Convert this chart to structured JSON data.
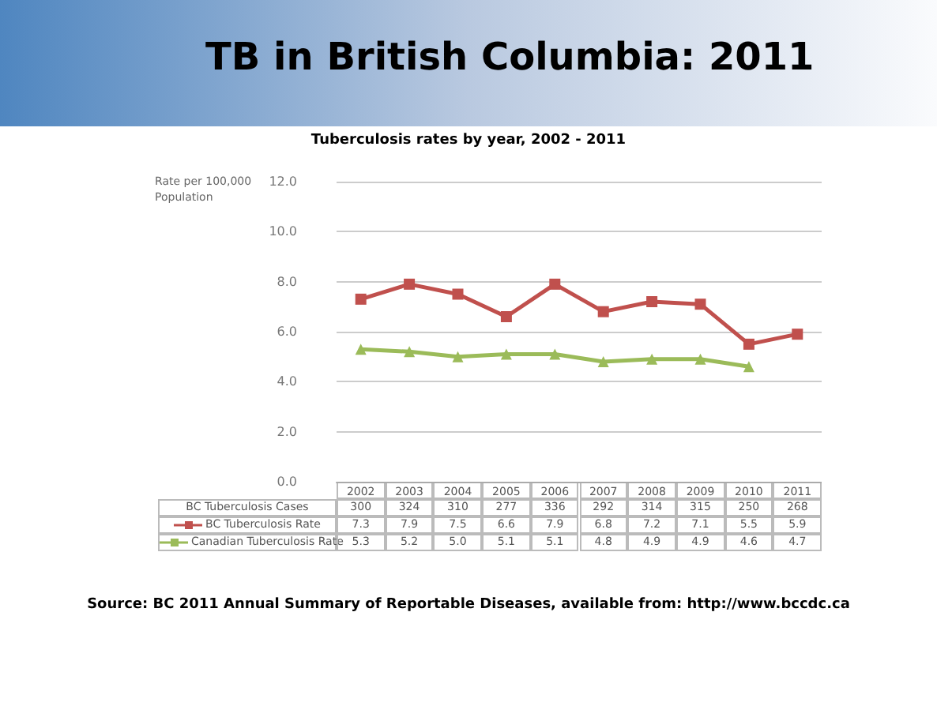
{
  "chart_data": {
    "type": "line",
    "title": "TB in British Columbia: 2011",
    "subtitle": "Tuberculosis rates by year, 2002 - 2011",
    "ylabel": "Rate per 100,000 Population",
    "categories": [
      "2002",
      "2003",
      "2004",
      "2005",
      "2006",
      "2007",
      "2008",
      "2009",
      "2010",
      "2011"
    ],
    "series": [
      {
        "name": "BC Tuberculosis Cases",
        "type": "other",
        "values": [
          null,
          null,
          null,
          null,
          null,
          null,
          null,
          null,
          null,
          null
        ],
        "value_labels": [
          "300",
          "324",
          "310",
          "277",
          "336",
          "292",
          "314",
          "315",
          "250",
          "268"
        ]
      },
      {
        "name": "BC Tuberculosis Rate",
        "color": "#c0504d",
        "marker": "square",
        "values": [
          7.3,
          7.9,
          7.5,
          6.6,
          7.9,
          6.8,
          7.2,
          7.1,
          5.5,
          5.9
        ],
        "value_labels": [
          "7.3",
          "7.9",
          "7.5",
          "6.6",
          "7.9",
          "6.8",
          "7.2",
          "7.1",
          "5.5",
          "5.9"
        ]
      },
      {
        "name": "Canadian Tuberculosis Rate",
        "color": "#9bbb59",
        "marker": "triangle",
        "values": [
          5.3,
          5.2,
          5.0,
          5.1,
          5.1,
          4.8,
          4.9,
          4.9,
          4.6,
          null
        ],
        "value_labels": [
          "5.3",
          "5.2",
          "5.0",
          "5.1",
          "5.1",
          "4.8",
          "4.9",
          "4.9",
          "4.6",
          "4.7"
        ]
      }
    ],
    "ylim": [
      0,
      12
    ],
    "yticks": [
      {
        "value": 0,
        "label": "0.0"
      },
      {
        "value": 2,
        "label": "2.0"
      },
      {
        "value": 4,
        "label": "4.0"
      },
      {
        "value": 6,
        "label": "6.0"
      },
      {
        "value": 8,
        "label": "8.0"
      },
      {
        "value": 10,
        "label": "10.0"
      },
      {
        "value": 12,
        "label": "12.0"
      }
    ],
    "grid": "y",
    "legend": "bottom",
    "annotations": [
      "Source: BC 2011 Annual Summary of Reportable Diseases, available from: http://www.bccdc.ca"
    ]
  }
}
